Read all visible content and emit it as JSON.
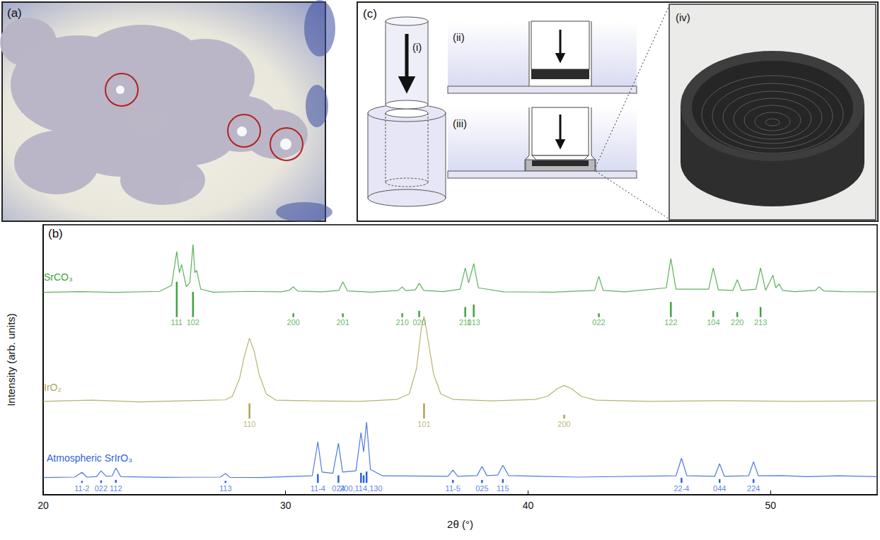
{
  "panels": {
    "a": {
      "label": "(a)"
    },
    "b": {
      "label": "(b)"
    },
    "c": {
      "label": "(c)",
      "parts": {
        "i": "(i)",
        "ii": "(ii)",
        "iii": "(iii)",
        "iv": "(iv)"
      }
    }
  },
  "chart_data": {
    "type": "line",
    "xlabel": "2θ (°)",
    "ylabel": "Intensity (arb. units)",
    "xlim": [
      20,
      54.4
    ],
    "xticks": [
      20,
      30,
      40,
      50
    ],
    "ylim": [
      0,
      107
    ],
    "tick_labels": "x",
    "grid": false,
    "series": [
      {
        "name": "SrCO₃",
        "color": "#3fa33f",
        "x": [
          20,
          21.5,
          23,
          24.8,
          25.3,
          25.51,
          25.62,
          25.71,
          25.9,
          26.05,
          26.18,
          26.26,
          26.33,
          26.5,
          27,
          28.5,
          29.8,
          30.15,
          30.32,
          30.5,
          31.5,
          32.2,
          32.36,
          32.55,
          33.5,
          34.65,
          34.81,
          34.95,
          35.35,
          35.51,
          35.7,
          36.5,
          37.2,
          37.41,
          37.55,
          37.76,
          37.95,
          39,
          41,
          42.75,
          42.92,
          43.1,
          44,
          45.7,
          45.89,
          46.1,
          47.45,
          47.64,
          47.85,
          48.45,
          48.63,
          48.8,
          49.4,
          49.59,
          49.8,
          50.1,
          50.22,
          50.35,
          50.5,
          51,
          51.85,
          52.0,
          52.2,
          53,
          54.4
        ],
        "values": [
          80.2,
          80.5,
          80.2,
          80.6,
          83,
          96.4,
          88,
          91.3,
          82.5,
          84,
          99.2,
          88,
          89,
          81.5,
          80.3,
          80.6,
          80.4,
          81,
          82.4,
          80.7,
          80.4,
          81,
          84.4,
          80.8,
          80.3,
          81,
          82.4,
          80.9,
          81.2,
          83.8,
          81,
          80.5,
          81.5,
          89.9,
          84,
          91.6,
          82,
          80.4,
          80.3,
          81,
          86.6,
          81,
          80.4,
          82,
          93.6,
          81.5,
          81.5,
          89.9,
          81.2,
          81,
          85.2,
          81,
          81.5,
          89.9,
          81,
          87,
          82,
          83.5,
          81,
          80.5,
          81,
          82.4,
          80.8,
          80.5,
          80.4
        ],
        "reference": {
          "base": 70.4,
          "x": [
            25.51,
            26.18,
            30.32,
            32.36,
            34.81,
            35.51,
            37.41,
            37.76,
            42.92,
            45.89,
            47.64,
            48.63,
            49.59
          ],
          "heights": [
            14,
            10,
            1.5,
            1.5,
            1.5,
            2.5,
            4,
            5,
            1.5,
            6,
            2.5,
            2,
            4
          ],
          "labels": [
            "111",
            "102",
            "200",
            "201",
            "210",
            "020",
            "211",
            "013",
            "022",
            "122",
            "104",
            "220",
            "213"
          ]
        }
      },
      {
        "name": "IrO₂",
        "color": "#aaa55a",
        "x": [
          20,
          22,
          24,
          26,
          27.5,
          27.8,
          28.1,
          28.3,
          28.51,
          28.7,
          28.9,
          29.2,
          29.6,
          31,
          33,
          34.6,
          35.1,
          35.4,
          35.6,
          35.71,
          35.85,
          36.1,
          36.4,
          36.9,
          38.5,
          40.3,
          40.8,
          41.2,
          41.49,
          41.8,
          42.2,
          42.8,
          45,
          48,
          51,
          54.4
        ],
        "values": [
          37,
          37.5,
          36.8,
          37.3,
          37.6,
          39,
          46,
          55,
          62,
          57,
          48,
          40,
          37.5,
          37.2,
          37,
          37.8,
          40,
          50,
          66,
          70.7,
          63,
          48,
          40,
          37.8,
          37.2,
          37.8,
          39,
          42,
          43.3,
          42,
          39,
          37.5,
          37,
          37.3,
          37,
          37.2
        ],
        "reference": {
          "base": 30.2,
          "x": [
            28.51,
            35.71,
            41.49
          ],
          "heights": [
            6,
            6,
            1.5
          ],
          "labels": [
            "110",
            "101",
            "200"
          ]
        }
      },
      {
        "name": "Atmospheric SrIrO₃",
        "color": "#2f62e0",
        "x": [
          20,
          21.3,
          21.6,
          21.8,
          22.2,
          22.39,
          22.6,
          22.85,
          23.0,
          23.2,
          25,
          27.3,
          27.52,
          27.7,
          29,
          31.1,
          31.33,
          31.5,
          31.95,
          32.18,
          32.35,
          32.9,
          33.11,
          33.22,
          33.34,
          33.5,
          34,
          36.7,
          36.9,
          37.1,
          37.9,
          38.1,
          38.3,
          38.75,
          38.96,
          39.2,
          42,
          46.1,
          46.33,
          46.55,
          47.7,
          47.9,
          48.1,
          49.1,
          49.3,
          49.5,
          50.5,
          51.5,
          52.8,
          54.4
        ],
        "values": [
          6.8,
          7,
          8.9,
          7,
          7.2,
          9.5,
          7.3,
          7.5,
          10.6,
          7.2,
          6.9,
          7,
          8.4,
          6.9,
          6.8,
          7.5,
          21,
          9,
          8.5,
          20.4,
          9,
          9.5,
          24.6,
          17,
          28.8,
          10,
          7.5,
          7.3,
          9.8,
          7.3,
          7.6,
          11.2,
          7.6,
          7.8,
          11.7,
          7.6,
          7,
          7.5,
          14.5,
          7.5,
          7.3,
          12.3,
          7.3,
          7.5,
          13.1,
          7.5,
          7.6,
          7.2,
          7.5,
          7.2
        ],
        "reference": {
          "base": 4.7,
          "x": [
            21.6,
            22.39,
            23.0,
            27.52,
            31.33,
            32.18,
            33.11,
            33.22,
            33.34,
            36.9,
            38.1,
            38.96,
            46.33,
            47.9,
            49.3
          ],
          "heights": [
            0.8,
            1,
            1.2,
            0.8,
            3.5,
            3,
            4,
            3,
            4.5,
            1.2,
            1.2,
            1.5,
            2,
            1.5,
            1.5
          ],
          "labels": [
            "11-2",
            "022",
            "112",
            "113",
            "11-4",
            "024",
            "200,114,130",
            null,
            null,
            "11-5",
            "025",
            "115",
            "22-4",
            "044",
            "224"
          ]
        }
      }
    ]
  }
}
